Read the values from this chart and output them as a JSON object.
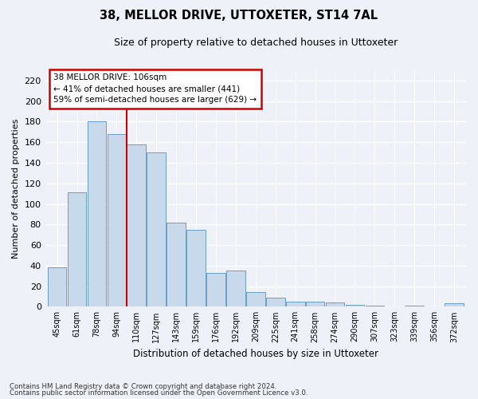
{
  "title1": "38, MELLOR DRIVE, UTTOXETER, ST14 7AL",
  "title2": "Size of property relative to detached houses in Uttoxeter",
  "xlabel": "Distribution of detached houses by size in Uttoxeter",
  "ylabel": "Number of detached properties",
  "categories": [
    "45sqm",
    "61sqm",
    "78sqm",
    "94sqm",
    "110sqm",
    "127sqm",
    "143sqm",
    "159sqm",
    "176sqm",
    "192sqm",
    "209sqm",
    "225sqm",
    "241sqm",
    "258sqm",
    "274sqm",
    "290sqm",
    "307sqm",
    "323sqm",
    "339sqm",
    "356sqm",
    "372sqm"
  ],
  "values": [
    38,
    111,
    180,
    168,
    158,
    150,
    82,
    75,
    33,
    35,
    14,
    9,
    5,
    5,
    4,
    2,
    1,
    0,
    1,
    0,
    3
  ],
  "bar_color": "#c9d9ec",
  "bar_edge_color": "#6a9ec5",
  "vline_x": 3.5,
  "vline_color": "#cc0000",
  "annotation_title": "38 MELLOR DRIVE: 106sqm",
  "annotation_line1": "← 41% of detached houses are smaller (441)",
  "annotation_line2": "59% of semi-detached houses are larger (629) →",
  "annotation_box_color": "#ffffff",
  "annotation_box_edge": "#cc0000",
  "ylim": [
    0,
    230
  ],
  "yticks": [
    0,
    20,
    40,
    60,
    80,
    100,
    120,
    140,
    160,
    180,
    200,
    220
  ],
  "footnote1": "Contains HM Land Registry data © Crown copyright and database right 2024.",
  "footnote2": "Contains public sector information licensed under the Open Government Licence v3.0.",
  "background_color": "#eef2f8",
  "grid_color": "#ffffff"
}
